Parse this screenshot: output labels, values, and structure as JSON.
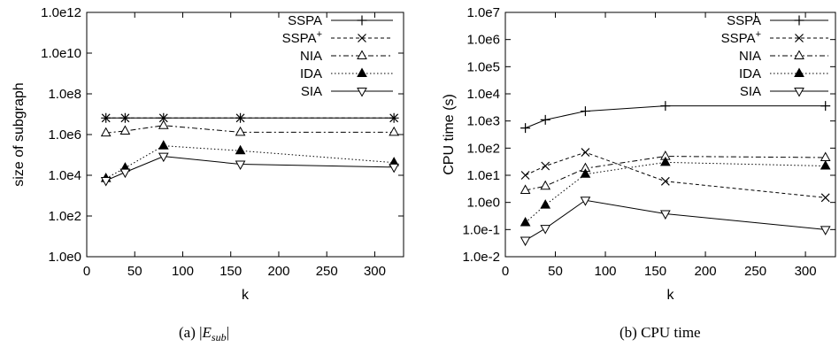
{
  "chart_data": [
    {
      "type": "line",
      "caption": "(a) |E_sub|",
      "xlabel": "k",
      "ylabel": "size of subgraph",
      "xlim": [
        0,
        330
      ],
      "ylim": [
        1,
        1000000000000.0
      ],
      "yscale": "log",
      "xticks": [
        "0",
        "50",
        "100",
        "150",
        "200",
        "250",
        "300"
      ],
      "yticks": [
        "1.0e0",
        "1.0e2",
        "1.0e4",
        "1.0e6",
        "1.0e8",
        "1.0e10",
        "1.0e12"
      ],
      "grid": false,
      "legend": "top-right",
      "x": [
        20,
        40,
        80,
        160,
        320
      ],
      "series": [
        {
          "name": "SSPA",
          "marker": "plus",
          "dash": "solid",
          "values": [
            6500000,
            6500000,
            6500000,
            6500000,
            6500000
          ]
        },
        {
          "name": "SSPA+",
          "marker": "cross",
          "dash": "dashed",
          "values": [
            6500000,
            6500000,
            6500000,
            6500000,
            6500000
          ]
        },
        {
          "name": "NIA",
          "marker": "triangle-open",
          "dash": "dashdot",
          "values": [
            1200000,
            1500000,
            2800000,
            1300000,
            1300000
          ]
        },
        {
          "name": "IDA",
          "marker": "triangle-filled",
          "dash": "dotted",
          "values": [
            7000,
            23000,
            280000,
            160000,
            42000
          ]
        },
        {
          "name": "SIA",
          "marker": "triangle-down-open",
          "dash": "solid",
          "values": [
            5500,
            14000,
            85000,
            35000,
            25000
          ]
        }
      ]
    },
    {
      "type": "line",
      "caption": "(b) CPU time",
      "xlabel": "k",
      "ylabel": "CPU time (s)",
      "xlim": [
        0,
        330
      ],
      "ylim": [
        0.01,
        10000000
      ],
      "yscale": "log",
      "xticks": [
        "0",
        "50",
        "100",
        "150",
        "200",
        "250",
        "300"
      ],
      "yticks": [
        "1.0e-2",
        "1.0e-1",
        "1.0e0",
        "1.0e1",
        "1.0e2",
        "1.0e3",
        "1.0e4",
        "1.0e5",
        "1.0e6",
        "1.0e7"
      ],
      "grid": false,
      "legend": "top-right",
      "x": [
        20,
        40,
        80,
        160,
        320
      ],
      "series": [
        {
          "name": "SSPA",
          "marker": "plus",
          "dash": "solid",
          "values": [
            550,
            1100,
            2300,
            3600,
            3600
          ]
        },
        {
          "name": "SSPA+",
          "marker": "cross",
          "dash": "dashed",
          "values": [
            10,
            22,
            70,
            6,
            1.5
          ]
        },
        {
          "name": "NIA",
          "marker": "triangle-open",
          "dash": "dashdot",
          "values": [
            2.8,
            4,
            18,
            50,
            45
          ]
        },
        {
          "name": "IDA",
          "marker": "triangle-filled",
          "dash": "dotted",
          "values": [
            0.18,
            0.8,
            11,
            30,
            22
          ]
        },
        {
          "name": "SIA",
          "marker": "triangle-down-open",
          "dash": "solid",
          "values": [
            0.04,
            0.11,
            1.2,
            0.38,
            0.1
          ]
        }
      ]
    }
  ]
}
